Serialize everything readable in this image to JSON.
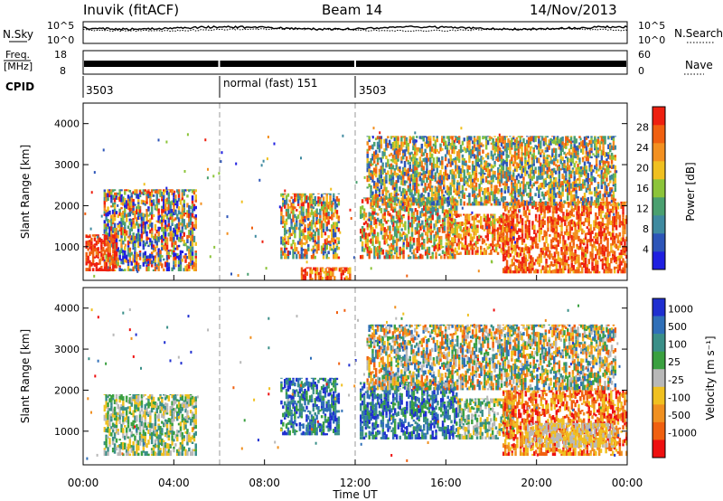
{
  "header": {
    "station": "Inuvik (fitACF)",
    "beam": "Beam 14",
    "date": "14/Nov/2013"
  },
  "top_panels": {
    "nsky_label": "N.Sky",
    "nsearch_label": "N.Search",
    "freq_label_1": "Freq.",
    "freq_label_2": "[MHz]",
    "nave_label": "Nave",
    "cpid_label": "CPID",
    "noise_left_ticks": [
      "10^5",
      "10^0"
    ],
    "noise_right_ticks": [
      "10^5",
      "10^0"
    ],
    "freq_ticks": [
      "18",
      "8"
    ],
    "nave_ticks": [
      "60",
      "0"
    ],
    "cpid_segments": [
      {
        "label": "3503",
        "start_hour": 0,
        "end_hour": 6
      },
      {
        "label": "normal (fast) 151",
        "start_hour": 6,
        "end_hour": 12
      },
      {
        "label": "3503",
        "start_hour": 12,
        "end_hour": 24
      }
    ]
  },
  "colors": {
    "power": [
      "#1f1fe0",
      "#2d55b8",
      "#3f8aa0",
      "#4aa070",
      "#8cc43a",
      "#f0c020",
      "#f39020",
      "#f06010",
      "#ee2010"
    ],
    "velocity": [
      "#1f2fd0",
      "#2f6fb8",
      "#3a8f88",
      "#3aa040",
      "#b8b8b8",
      "#f0c020",
      "#f09020",
      "#f06010",
      "#ee1010"
    ]
  },
  "chart_data": [
    {
      "type": "heatmap",
      "name": "power",
      "xlabel": "",
      "ylabel": "Slant Range [km]",
      "xlim": [
        0,
        24
      ],
      "ylim": [
        180,
        4500
      ],
      "yticks": [
        1000,
        2000,
        3000,
        4000
      ],
      "colorbar_label": "Power [dB]",
      "colorbar_ticks": [
        4,
        8,
        12,
        16,
        20,
        24,
        28
      ],
      "colorbar_range": [
        0,
        32
      ],
      "regions": [
        {
          "t0": 0.9,
          "t1": 5.0,
          "r0": 400,
          "r1": 2400,
          "lo": 0,
          "hi": 32
        },
        {
          "t0": 0.1,
          "t1": 1.5,
          "r0": 400,
          "r1": 1300,
          "lo": 24,
          "hi": 32
        },
        {
          "t0": 8.7,
          "t1": 11.3,
          "r0": 700,
          "r1": 2300,
          "lo": 4,
          "hi": 30
        },
        {
          "t0": 9.6,
          "t1": 11.8,
          "r0": 180,
          "r1": 500,
          "lo": 20,
          "hi": 32
        },
        {
          "t0": 12.2,
          "t1": 16.5,
          "r0": 700,
          "r1": 2200,
          "lo": 8,
          "hi": 32
        },
        {
          "t0": 16.0,
          "t1": 19.0,
          "r0": 800,
          "r1": 1800,
          "lo": 16,
          "hi": 32
        },
        {
          "t0": 18.5,
          "t1": 24.0,
          "r0": 350,
          "r1": 2100,
          "lo": 20,
          "hi": 32
        },
        {
          "t0": 12.5,
          "t1": 23.5,
          "r0": 2000,
          "r1": 3700,
          "lo": 4,
          "hi": 28
        }
      ]
    },
    {
      "type": "heatmap",
      "name": "velocity",
      "xlabel": "Time UT",
      "ylabel": "Slant Range [km]",
      "xlim": [
        0,
        24
      ],
      "ylim": [
        180,
        4500
      ],
      "yticks": [
        1000,
        2000,
        3000,
        4000
      ],
      "xticks": [
        "00:00",
        "04:00",
        "08:00",
        "12:00",
        "16:00",
        "20:00",
        "00:00"
      ],
      "colorbar_label": "Velocity [m s⁻¹]",
      "colorbar_ticks": [
        "1000",
        "500",
        "100",
        "25",
        "-25",
        "-100",
        "-500",
        "-1000"
      ],
      "regions": [
        {
          "t0": 0.9,
          "t1": 5.0,
          "r0": 400,
          "r1": 1900,
          "lo": 2,
          "hi": 5
        },
        {
          "t0": 8.7,
          "t1": 11.3,
          "r0": 900,
          "r1": 2300,
          "lo": 0,
          "hi": 3
        },
        {
          "t0": 12.2,
          "t1": 16.5,
          "r0": 800,
          "r1": 2200,
          "lo": 0,
          "hi": 3
        },
        {
          "t0": 16.5,
          "t1": 19.0,
          "r0": 800,
          "r1": 1800,
          "lo": 2,
          "hi": 5
        },
        {
          "t0": 18.5,
          "t1": 24.0,
          "r0": 400,
          "r1": 2000,
          "lo": 5,
          "hi": 8
        },
        {
          "t0": 19.5,
          "t1": 23.5,
          "r0": 600,
          "r1": 1200,
          "lo": 4,
          "hi": 5
        },
        {
          "t0": 12.5,
          "t1": 23.5,
          "r0": 2000,
          "r1": 3600,
          "lo": 1,
          "hi": 7
        }
      ]
    }
  ]
}
